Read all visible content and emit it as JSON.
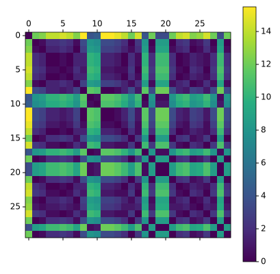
{
  "chart_data": {
    "type": "heatmap",
    "colormap": "viridis",
    "matrix": [
      [
        0,
        12,
        12.5,
        14,
        14,
        14.5,
        14,
        12.5,
        15.5,
        4,
        4.5,
        15.5,
        15.5,
        15,
        14,
        12,
        14.5,
        4,
        12,
        3.5,
        3.5,
        12,
        14,
        14.5,
        12.5,
        13,
        14.5,
        12,
        3.5,
        12
      ],
      [
        12,
        0,
        0.5,
        2,
        2,
        2.5,
        2,
        0.5,
        3.5,
        8,
        7.5,
        3.5,
        3.5,
        3,
        2,
        0,
        2.5,
        8,
        0,
        8.5,
        8.5,
        0,
        2,
        2.5,
        0.5,
        1,
        2.5,
        0,
        8.5,
        0
      ],
      [
        12.5,
        0.5,
        0,
        1.5,
        1.5,
        2,
        1.5,
        0,
        3,
        8.5,
        8,
        3,
        3,
        2.5,
        1.5,
        0.5,
        2,
        8.5,
        0.5,
        9,
        9,
        0.5,
        1.5,
        2,
        0,
        0.5,
        2,
        0.5,
        9,
        0.5
      ],
      [
        14,
        2,
        1.5,
        0,
        0,
        0.5,
        0,
        1.5,
        1.5,
        10,
        9.5,
        1.5,
        1.5,
        1,
        0,
        2,
        0.5,
        10,
        2,
        10.5,
        10.5,
        2,
        0,
        0.5,
        1.5,
        1,
        0.5,
        2,
        10.5,
        2
      ],
      [
        14,
        2,
        1.5,
        0,
        0,
        0.5,
        0,
        1.5,
        1.5,
        10,
        9.5,
        1.5,
        1.5,
        1,
        0,
        2,
        0.5,
        10,
        2,
        10.5,
        10.5,
        2,
        0,
        0.5,
        1.5,
        1,
        0.5,
        2,
        10.5,
        2
      ],
      [
        14.5,
        2.5,
        2,
        0.5,
        0.5,
        0,
        0.5,
        2,
        1,
        10.5,
        10,
        1,
        1,
        0.5,
        0.5,
        2.5,
        0,
        10.5,
        2.5,
        11,
        11,
        2.5,
        0.5,
        0,
        2,
        1.5,
        0,
        2.5,
        11,
        2.5
      ],
      [
        14,
        2,
        1.5,
        0,
        0,
        0.5,
        0,
        1.5,
        1.5,
        10,
        9.5,
        1.5,
        1.5,
        1,
        0,
        2,
        0.5,
        10,
        2,
        10.5,
        10.5,
        2,
        0,
        0.5,
        1.5,
        1,
        0.5,
        2,
        10.5,
        2
      ],
      [
        12.5,
        0.5,
        0,
        1.5,
        1.5,
        2,
        1.5,
        0,
        3,
        8.5,
        8,
        3,
        3,
        2.5,
        1.5,
        0.5,
        2,
        8.5,
        0.5,
        9,
        9,
        0.5,
        1.5,
        2,
        0,
        0.5,
        2,
        0.5,
        9,
        0.5
      ],
      [
        15.5,
        3.5,
        3,
        1.5,
        1.5,
        1,
        1.5,
        3,
        0,
        11.5,
        11,
        0,
        0,
        0.5,
        1.5,
        3.5,
        1,
        11.5,
        3.5,
        12,
        12,
        3.5,
        1.5,
        1,
        3,
        2.5,
        1,
        3.5,
        12,
        3.5
      ],
      [
        4,
        8,
        8.5,
        10,
        10,
        10.5,
        10,
        8.5,
        11.5,
        0,
        0.5,
        11.5,
        11.5,
        11,
        10,
        8,
        10.5,
        0,
        8,
        0.5,
        0.5,
        8,
        10,
        10.5,
        8.5,
        9,
        10.5,
        8,
        0.5,
        8
      ],
      [
        4.5,
        7.5,
        8,
        9.5,
        9.5,
        10,
        9.5,
        8,
        11,
        0.5,
        0,
        11,
        11,
        10.5,
        9.5,
        7.5,
        10,
        0.5,
        7.5,
        1,
        1,
        7.5,
        9.5,
        10,
        8,
        8.5,
        10,
        7.5,
        1,
        7.5
      ],
      [
        15.5,
        3.5,
        3,
        1.5,
        1.5,
        1,
        1.5,
        3,
        0,
        11.5,
        11,
        0,
        0,
        0.5,
        1.5,
        3.5,
        1,
        11.5,
        3.5,
        12,
        12,
        3.5,
        1.5,
        1,
        3,
        2.5,
        1,
        3.5,
        12,
        3.5
      ],
      [
        15.5,
        3.5,
        3,
        1.5,
        1.5,
        1,
        1.5,
        3,
        0,
        11.5,
        11,
        0,
        0,
        0.5,
        1.5,
        3.5,
        1,
        11.5,
        3.5,
        12,
        12,
        3.5,
        1.5,
        1,
        3,
        2.5,
        1,
        3.5,
        12,
        3.5
      ],
      [
        15,
        3,
        2.5,
        1,
        1,
        0.5,
        1,
        2.5,
        0.5,
        11,
        10.5,
        0.5,
        0.5,
        0,
        1,
        3,
        0.5,
        11,
        3,
        11.5,
        11.5,
        3,
        1,
        0.5,
        2.5,
        2,
        0.5,
        3,
        11.5,
        3
      ],
      [
        14,
        2,
        1.5,
        0,
        0,
        0.5,
        0,
        1.5,
        1.5,
        10,
        9.5,
        1.5,
        1.5,
        1,
        0,
        2,
        0.5,
        10,
        2,
        10.5,
        10.5,
        2,
        0,
        0.5,
        1.5,
        1,
        0.5,
        2,
        10.5,
        2
      ],
      [
        12,
        0,
        0.5,
        2,
        2,
        2.5,
        2,
        0.5,
        3.5,
        8,
        7.5,
        3.5,
        3.5,
        3,
        2,
        0,
        2.5,
        8,
        0,
        8.5,
        8.5,
        0,
        2,
        2.5,
        0.5,
        1,
        2.5,
        0,
        8.5,
        0
      ],
      [
        14.5,
        2.5,
        2,
        0.5,
        0.5,
        0,
        0.5,
        2,
        1,
        10.5,
        10,
        1,
        1,
        0.5,
        0.5,
        2.5,
        0,
        10.5,
        2.5,
        11,
        11,
        2.5,
        0.5,
        0,
        2,
        1.5,
        0,
        2.5,
        11,
        2.5
      ],
      [
        4,
        8,
        8.5,
        10,
        10,
        10.5,
        10,
        8.5,
        11.5,
        0,
        0.5,
        11.5,
        11.5,
        11,
        10,
        8,
        10.5,
        0,
        8,
        0.5,
        0.5,
        8,
        10,
        10.5,
        8.5,
        9,
        10.5,
        8,
        0.5,
        8
      ],
      [
        12,
        0,
        0.5,
        2,
        2,
        2.5,
        2,
        0.5,
        3.5,
        8,
        7.5,
        3.5,
        3.5,
        3,
        2,
        0,
        2.5,
        8,
        0,
        8.5,
        8.5,
        0,
        2,
        2.5,
        0.5,
        1,
        2.5,
        0,
        8.5,
        0
      ],
      [
        3.5,
        8.5,
        9,
        10.5,
        10.5,
        11,
        10.5,
        9,
        12,
        0.5,
        1,
        12,
        12,
        11.5,
        10.5,
        8.5,
        11,
        0.5,
        8.5,
        0,
        0,
        8.5,
        10.5,
        11,
        9,
        9.5,
        11,
        8.5,
        0,
        8.5
      ],
      [
        3.5,
        8.5,
        9,
        10.5,
        10.5,
        11,
        10.5,
        9,
        12,
        0.5,
        1,
        12,
        12,
        11.5,
        10.5,
        8.5,
        11,
        0.5,
        8.5,
        0,
        0,
        8.5,
        10.5,
        11,
        9,
        9.5,
        11,
        8.5,
        0,
        8.5
      ],
      [
        12,
        0,
        0.5,
        2,
        2,
        2.5,
        2,
        0.5,
        3.5,
        8,
        7.5,
        3.5,
        3.5,
        3,
        2,
        0,
        2.5,
        8,
        0,
        8.5,
        8.5,
        0,
        2,
        2.5,
        0.5,
        1,
        2.5,
        0,
        8.5,
        0
      ],
      [
        14,
        2,
        1.5,
        0,
        0,
        0.5,
        0,
        1.5,
        1.5,
        10,
        9.5,
        1.5,
        1.5,
        1,
        0,
        2,
        0.5,
        10,
        2,
        10.5,
        10.5,
        2,
        0,
        0.5,
        1.5,
        1,
        0.5,
        2,
        10.5,
        2
      ],
      [
        14.5,
        2.5,
        2,
        0.5,
        0.5,
        0,
        0.5,
        2,
        1,
        10.5,
        10,
        1,
        1,
        0.5,
        0.5,
        2.5,
        0,
        10.5,
        2.5,
        11,
        11,
        2.5,
        0.5,
        0,
        2,
        1.5,
        0,
        2.5,
        11,
        2.5
      ],
      [
        12.5,
        0.5,
        0,
        1.5,
        1.5,
        2,
        1.5,
        0,
        3,
        8.5,
        8,
        3,
        3,
        2.5,
        1.5,
        0.5,
        2,
        8.5,
        0.5,
        9,
        9,
        0.5,
        1.5,
        2,
        0,
        0.5,
        2,
        0.5,
        9,
        0.5
      ],
      [
        13,
        1,
        0.5,
        1,
        1,
        1.5,
        1,
        0.5,
        2.5,
        9,
        8.5,
        2.5,
        2.5,
        2,
        1,
        1,
        1.5,
        9,
        1,
        9.5,
        9.5,
        1,
        1,
        1.5,
        0.5,
        0,
        1.5,
        1,
        9.5,
        1
      ],
      [
        14.5,
        2.5,
        2,
        0.5,
        0.5,
        0,
        0.5,
        2,
        1,
        10.5,
        10,
        1,
        1,
        0.5,
        0.5,
        2.5,
        0,
        10.5,
        2.5,
        11,
        11,
        2.5,
        0.5,
        0,
        2,
        1.5,
        0,
        2.5,
        11,
        2.5
      ],
      [
        12,
        0,
        0.5,
        2,
        2,
        2.5,
        2,
        0.5,
        3.5,
        8,
        7.5,
        3.5,
        3.5,
        3,
        2,
        0,
        2.5,
        8,
        0,
        8.5,
        8.5,
        0,
        2,
        2.5,
        0.5,
        1,
        2.5,
        0,
        8.5,
        0
      ],
      [
        3.5,
        8.5,
        9,
        10.5,
        10.5,
        11,
        10.5,
        9,
        12,
        0.5,
        1,
        12,
        12,
        11.5,
        10.5,
        8.5,
        11,
        0.5,
        8.5,
        0,
        0,
        8.5,
        10.5,
        11,
        9,
        9.5,
        11,
        8.5,
        0,
        8.5
      ],
      [
        12,
        0,
        0.5,
        2,
        2,
        2.5,
        2,
        0.5,
        3.5,
        8,
        7.5,
        3.5,
        3.5,
        3,
        2,
        0,
        2.5,
        8,
        0,
        8.5,
        8.5,
        0,
        2,
        2.5,
        0.5,
        1,
        2.5,
        0,
        8.5,
        0
      ]
    ],
    "xticks": [
      0,
      5,
      10,
      15,
      20,
      25
    ],
    "yticks": [
      0,
      5,
      10,
      15,
      20,
      25
    ],
    "colorbar_lim": [
      0,
      15.5
    ],
    "colorbar_ticks": [
      0,
      2,
      4,
      6,
      8,
      10,
      12,
      14
    ]
  }
}
